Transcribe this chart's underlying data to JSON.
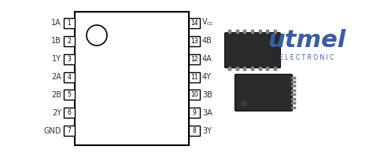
{
  "left_pins": [
    {
      "num": "1",
      "label": "1A"
    },
    {
      "num": "2",
      "label": "1B"
    },
    {
      "num": "3",
      "label": "1Y"
    },
    {
      "num": "4",
      "label": "2A"
    },
    {
      "num": "5",
      "label": "2B"
    },
    {
      "num": "6",
      "label": "2Y"
    },
    {
      "num": "7",
      "label": "GND"
    }
  ],
  "right_pins": [
    {
      "num": "14",
      "label": "VCC",
      "vcc": true
    },
    {
      "num": "13",
      "label": "4B",
      "vcc": false
    },
    {
      "num": "12",
      "label": "4A",
      "vcc": false
    },
    {
      "num": "11",
      "label": "4Y",
      "vcc": false
    },
    {
      "num": "10",
      "label": "3B",
      "vcc": false
    },
    {
      "num": "9",
      "label": "3A",
      "vcc": false
    },
    {
      "num": "8",
      "label": "3Y",
      "vcc": false
    }
  ],
  "body_color": "white",
  "body_edge_color": "black",
  "pin_box_color": "white",
  "pin_box_edge": "black",
  "text_color": "black",
  "label_color": "#333333",
  "utmel_color": "#3a5ca8",
  "utmel_text": "utmel",
  "electronic_text": "E L E C T R O N I C",
  "notch_color": "white",
  "notch_edge": "black",
  "chip_color": "#2a2a2a",
  "chip_pin_color": "#888888",
  "chip_pin_edge": "#555555",
  "bg_color": "white"
}
